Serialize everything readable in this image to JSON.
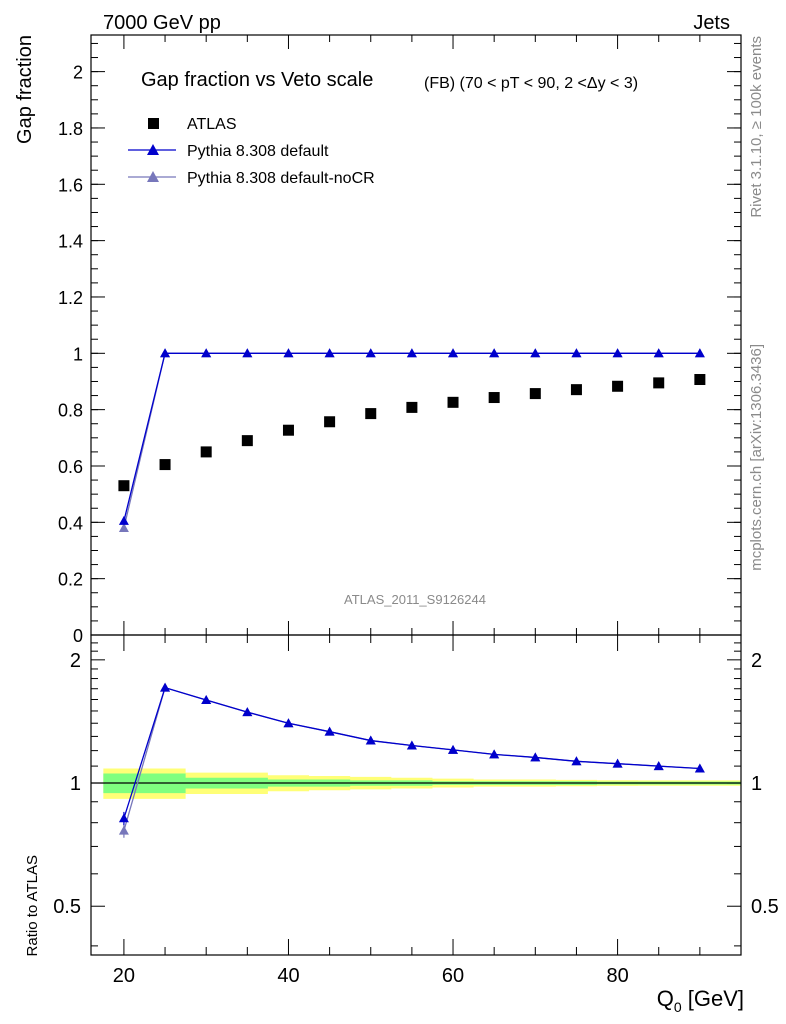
{
  "header": {
    "left": "7000 GeV pp",
    "right": "Jets"
  },
  "side_text": {
    "rivet": "Rivet 3.1.10, ≥ 100k events",
    "mcplots": "mcplots.cern.ch [arXiv:1306.3436]"
  },
  "watermark": "ATLAS_2011_S9126244",
  "colors": {
    "data": "#000000",
    "default": "#0000cc",
    "noCR": "#7777bb",
    "band_inner": "#7fff7f",
    "band_outer": "#ffff77"
  },
  "chart_data": [
    {
      "type": "scatter",
      "title": "Gap fraction vs Veto scale",
      "subtitle": "(FB) (70 < pT <  90, 2 <Δy < 3)",
      "ylabel": "Gap fraction",
      "xlabel": "",
      "xlim": [
        16,
        95
      ],
      "ylim": [
        0,
        2.13
      ],
      "y_ticks": [
        "0",
        "0.2",
        "0.4",
        "0.6",
        "0.8",
        "1",
        "1.2",
        "1.4",
        "1.6",
        "1.8",
        "2"
      ],
      "legend_position": "top-left",
      "x": [
        20,
        25,
        30,
        35,
        40,
        45,
        50,
        55,
        60,
        65,
        70,
        75,
        80,
        85,
        90
      ],
      "series": [
        {
          "name": "ATLAS",
          "style": "square-markers",
          "values": [
            0.53,
            0.605,
            0.65,
            0.69,
            0.727,
            0.757,
            0.786,
            0.808,
            0.826,
            0.843,
            0.857,
            0.871,
            0.883,
            0.895,
            0.907
          ]
        },
        {
          "name": "Pythia 8.308 default",
          "style": "line-triangle",
          "values": [
            0.405,
            1.0,
            1.0,
            1.0,
            1.0,
            1.0,
            1.0,
            1.0,
            1.0,
            1.0,
            1.0,
            1.0,
            1.0,
            1.0,
            1.0
          ]
        },
        {
          "name": "Pythia 8.308 default-noCR",
          "style": "line-triangle",
          "values": [
            0.38,
            1.0,
            1.0,
            1.0,
            1.0,
            1.0,
            1.0,
            1.0,
            1.0,
            1.0,
            1.0,
            1.0,
            1.0,
            1.0,
            1.0
          ]
        }
      ]
    },
    {
      "type": "line",
      "title": "",
      "ylabel": "Ratio to ATLAS",
      "xlabel": "Q",
      "xlabel_sub": "0",
      "xlabel_unit": " [GeV]",
      "xlim": [
        16,
        95
      ],
      "ylim": [
        0.38,
        2.3
      ],
      "y_scale": "log",
      "y_ticks": [
        "0.5",
        "1",
        "2"
      ],
      "x_ticks": [
        "20",
        "40",
        "60",
        "80"
      ],
      "x": [
        20,
        25,
        30,
        35,
        40,
        45,
        50,
        55,
        60,
        65,
        70,
        75,
        80,
        85,
        90
      ],
      "band_inner": [
        0.055,
        0.055,
        0.03,
        0.03,
        0.02,
        0.02,
        0.015,
        0.015,
        0.01,
        0.01,
        0.01,
        0.01,
        0.008,
        0.008,
        0.008
      ],
      "band_outer": [
        0.085,
        0.085,
        0.06,
        0.06,
        0.045,
        0.04,
        0.035,
        0.03,
        0.025,
        0.02,
        0.02,
        0.018,
        0.016,
        0.015,
        0.015
      ],
      "series": [
        {
          "name": "Pythia 8.308 default",
          "values": [
            0.82,
            1.71,
            1.595,
            1.49,
            1.4,
            1.335,
            1.27,
            1.235,
            1.205,
            1.175,
            1.155,
            1.13,
            1.115,
            1.1,
            1.085
          ],
          "err": [
            0.03,
            0,
            0,
            0,
            0,
            0,
            0,
            0,
            0,
            0,
            0,
            0,
            0,
            0,
            0
          ]
        },
        {
          "name": "Pythia 8.308 default-noCR",
          "values": [
            0.765,
            1.71,
            1.595,
            1.49,
            1.4,
            1.335,
            1.27,
            1.235,
            1.205,
            1.175,
            1.155,
            1.13,
            1.115,
            1.1,
            1.085
          ],
          "err": [
            0.03,
            0,
            0,
            0,
            0,
            0,
            0,
            0,
            0,
            0,
            0,
            0,
            0,
            0,
            0
          ]
        }
      ]
    }
  ]
}
